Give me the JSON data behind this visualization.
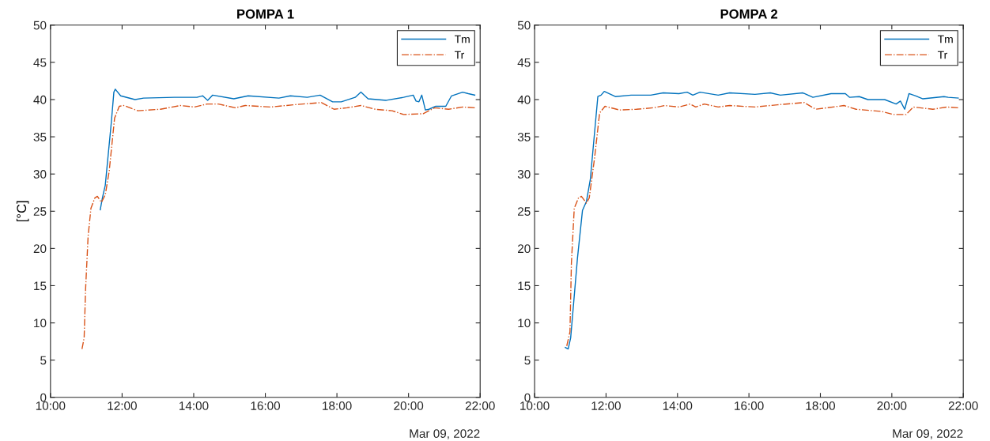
{
  "chart_data": [
    {
      "type": "line",
      "title": "POMPA 1",
      "ylabel": "[°C]",
      "annotations": [
        "Mar 09, 2022"
      ],
      "legend": "top right",
      "grid": false,
      "xlim": [
        10,
        22
      ],
      "xticks": [
        {
          "value": 10,
          "label": "10:00"
        },
        {
          "value": 12,
          "label": "12:00"
        },
        {
          "value": 14,
          "label": "14:00"
        },
        {
          "value": 16,
          "label": "16:00"
        },
        {
          "value": 18,
          "label": "18:00"
        },
        {
          "value": 20,
          "label": "20:00"
        },
        {
          "value": 22,
          "label": "22:00"
        }
      ],
      "ylim": [
        0,
        50
      ],
      "yticks": [
        0,
        5,
        10,
        15,
        20,
        25,
        30,
        35,
        40,
        45,
        50
      ],
      "series": [
        {
          "name": "Tm",
          "color": "#0072bd",
          "line_style": "solid",
          "x": [
            11.39,
            11.45,
            11.53,
            11.6,
            11.7,
            11.77,
            11.81,
            11.96,
            12.36,
            12.6,
            13.46,
            14.09,
            14.25,
            14.39,
            14.53,
            15.12,
            15.52,
            16.38,
            16.7,
            17.17,
            17.53,
            17.88,
            18.12,
            18.51,
            18.67,
            18.87,
            19.38,
            19.86,
            20.13,
            20.21,
            20.29,
            20.37,
            20.47,
            20.57,
            20.76,
            21.04,
            21.2,
            21.51,
            21.67,
            21.85
          ],
          "values": [
            25.2,
            26.8,
            28.5,
            32,
            37,
            41.0,
            41.4,
            40.5,
            40.0,
            40.2,
            40.3,
            40.3,
            40.5,
            39.9,
            40.6,
            40.1,
            40.5,
            40.2,
            40.5,
            40.3,
            40.6,
            39.7,
            39.7,
            40.3,
            41.0,
            40.1,
            39.9,
            40.3,
            40.6,
            39.8,
            39.7,
            40.6,
            38.6,
            38.7,
            39.1,
            39.1,
            40.5,
            41.0,
            40.8,
            40.6
          ]
        },
        {
          "name": "Tr",
          "color": "#d95319",
          "line_style": "dashdot",
          "x": [
            10.88,
            10.94,
            10.98,
            11.05,
            11.13,
            11.24,
            11.31,
            11.42,
            11.53,
            11.64,
            11.79,
            11.92,
            12.05,
            12.44,
            13.07,
            13.62,
            14.02,
            14.37,
            14.69,
            15.16,
            15.44,
            16.15,
            16.78,
            17.57,
            17.92,
            18.28,
            18.67,
            19.07,
            19.54,
            19.86,
            20.41,
            20.73,
            21.12,
            21.51,
            21.85
          ],
          "values": [
            6.5,
            8.0,
            14.5,
            21.6,
            25.4,
            26.8,
            27.0,
            26.2,
            27.2,
            30.4,
            37.5,
            39.1,
            39.2,
            38.5,
            38.7,
            39.2,
            39.0,
            39.4,
            39.4,
            38.9,
            39.2,
            39.0,
            39.3,
            39.6,
            38.7,
            38.9,
            39.2,
            38.7,
            38.5,
            38.0,
            38.1,
            38.9,
            38.7,
            39.0,
            38.9
          ]
        }
      ]
    },
    {
      "type": "line",
      "title": "POMPA 2",
      "annotations": [
        "Mar 09, 2022"
      ],
      "legend": "top right",
      "grid": false,
      "xlim": [
        10,
        22
      ],
      "xticks": [
        {
          "value": 10,
          "label": "10:00"
        },
        {
          "value": 12,
          "label": "12:00"
        },
        {
          "value": 14,
          "label": "14:00"
        },
        {
          "value": 16,
          "label": "16:00"
        },
        {
          "value": 18,
          "label": "18:00"
        },
        {
          "value": 20,
          "label": "20:00"
        },
        {
          "value": 22,
          "label": "22:00"
        }
      ],
      "ylim": [
        0,
        50
      ],
      "yticks": [
        0,
        5,
        10,
        15,
        20,
        25,
        30,
        35,
        40,
        45,
        50
      ],
      "series": [
        {
          "name": "Tm",
          "color": "#0072bd",
          "line_style": "solid",
          "x": [
            10.86,
            10.94,
            11.01,
            11.2,
            11.34,
            11.45,
            11.56,
            11.77,
            11.86,
            11.95,
            12.26,
            12.7,
            13.25,
            13.6,
            14.04,
            14.27,
            14.43,
            14.63,
            15.14,
            15.46,
            16.17,
            16.6,
            16.88,
            17.51,
            17.79,
            18.3,
            18.7,
            18.82,
            19.09,
            19.33,
            19.8,
            20.12,
            20.24,
            20.36,
            20.48,
            20.67,
            20.87,
            21.46,
            21.58,
            21.86
          ],
          "values": [
            6.7,
            6.5,
            8.0,
            18.7,
            25.1,
            26.3,
            29.3,
            40.4,
            40.6,
            41.1,
            40.4,
            40.6,
            40.6,
            40.9,
            40.8,
            41.0,
            40.6,
            41.0,
            40.6,
            40.9,
            40.7,
            40.9,
            40.6,
            40.9,
            40.3,
            40.8,
            40.8,
            40.3,
            40.4,
            40.0,
            40.0,
            39.4,
            39.8,
            38.7,
            40.8,
            40.5,
            40.1,
            40.4,
            40.3,
            40.2
          ]
        },
        {
          "name": "Tr",
          "color": "#d95319",
          "line_style": "dashdot",
          "x": [
            10.9,
            10.99,
            11.03,
            11.11,
            11.23,
            11.31,
            11.45,
            11.53,
            11.68,
            11.82,
            11.97,
            12.38,
            12.85,
            13.33,
            13.64,
            14.04,
            14.35,
            14.51,
            14.75,
            15.14,
            15.46,
            16.17,
            16.8,
            17.55,
            17.87,
            18.66,
            19.0,
            19.72,
            20.04,
            20.4,
            20.6,
            21.15,
            21.54,
            21.86
          ],
          "values": [
            6.9,
            8.8,
            18.0,
            25.4,
            26.8,
            27.0,
            26.1,
            26.8,
            32.2,
            38.2,
            39.1,
            38.6,
            38.7,
            38.9,
            39.2,
            39.0,
            39.4,
            39.0,
            39.4,
            39.0,
            39.2,
            39.0,
            39.3,
            39.6,
            38.7,
            39.2,
            38.7,
            38.4,
            38.0,
            38.0,
            39.0,
            38.7,
            39.0,
            38.9
          ]
        }
      ]
    }
  ]
}
